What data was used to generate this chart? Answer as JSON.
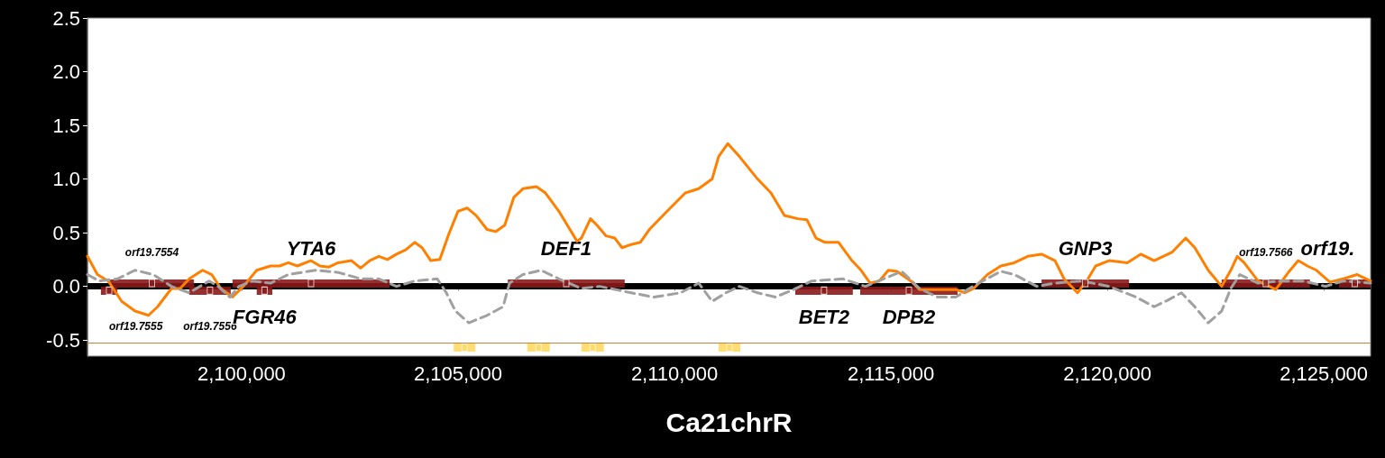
{
  "chart_data": {
    "type": "line",
    "xlabel": "Ca21chrR",
    "xlim": [
      2096440,
      2126080
    ],
    "xticks": [
      {
        "value": 2100000,
        "label": "2,100,000"
      },
      {
        "value": 2105000,
        "label": "2,105,000"
      },
      {
        "value": 2110000,
        "label": "2,110,000"
      },
      {
        "value": 2115000,
        "label": "2,115,000"
      },
      {
        "value": 2120000,
        "label": "2,120,000"
      },
      {
        "value": 2125000,
        "label": "2,125,000"
      }
    ],
    "ylim": [
      -0.65,
      2.5
    ],
    "yticks": [
      {
        "value": -0.5,
        "label": "-0.5"
      },
      {
        "value": 0,
        "label": "0.0"
      },
      {
        "value": 0.5,
        "label": "0.5"
      },
      {
        "value": 1,
        "label": "1.0"
      },
      {
        "value": 1.5,
        "label": "1.5"
      },
      {
        "value": 2,
        "label": "2.0"
      },
      {
        "value": 2.5,
        "label": "2.5"
      }
    ],
    "grid": false,
    "marker": "none",
    "series": [
      {
        "color": "#ff8000",
        "line_style": "solid",
        "x": [
          2096440,
          2096670,
          2096920,
          2097230,
          2097540,
          2097850,
          2098060,
          2098380,
          2098580,
          2098790,
          2099100,
          2099310,
          2099520,
          2099790,
          2100040,
          2100350,
          2100670,
          2100880,
          2101080,
          2101290,
          2101600,
          2101810,
          2102020,
          2102230,
          2102540,
          2102750,
          2102960,
          2103170,
          2103370,
          2103580,
          2103790,
          2104000,
          2104170,
          2104370,
          2104580,
          2104790,
          2105000,
          2105210,
          2105420,
          2105670,
          2105870,
          2106080,
          2106290,
          2106500,
          2106810,
          2107020,
          2107330,
          2107750,
          2107850,
          2108060,
          2108210,
          2108420,
          2108620,
          2108790,
          2109000,
          2109210,
          2109420,
          2109830,
          2110250,
          2110560,
          2110870,
          2111020,
          2111230,
          2111500,
          2111920,
          2112230,
          2112540,
          2112850,
          2113060,
          2113270,
          2113480,
          2113790,
          2114100,
          2114310,
          2114520,
          2114730,
          2114940,
          2115140,
          2115460,
          2115660,
          2116080,
          2116500,
          2116710,
          2116910,
          2117230,
          2117540,
          2117850,
          2118160,
          2118480,
          2118790,
          2119000,
          2119310,
          2119520,
          2119730,
          2120040,
          2120460,
          2120770,
          2121080,
          2121500,
          2121810,
          2122020,
          2122330,
          2122640,
          2122850,
          2123000,
          2123160,
          2123480,
          2123890,
          2124200,
          2124410,
          2124620,
          2124830,
          2125140,
          2125450,
          2125770,
          2126080
        ],
        "values": [
          0.28,
          0.11,
          0.05,
          -0.14,
          -0.23,
          -0.27,
          -0.19,
          -0.02,
          -0.02,
          0.07,
          0.15,
          0.11,
          -0.02,
          -0.1,
          0,
          0.15,
          0.19,
          0.19,
          0.22,
          0.19,
          0.24,
          0.19,
          0.18,
          0.22,
          0.24,
          0.17,
          0.24,
          0.28,
          0.25,
          0.3,
          0.34,
          0.41,
          0.36,
          0.24,
          0.25,
          0.49,
          0.7,
          0.73,
          0.66,
          0.53,
          0.51,
          0.57,
          0.83,
          0.91,
          0.93,
          0.87,
          0.7,
          0.42,
          0.45,
          0.63,
          0.57,
          0.47,
          0.45,
          0.36,
          0.39,
          0.41,
          0.53,
          0.7,
          0.87,
          0.91,
          1.0,
          1.21,
          1.33,
          1.21,
          1.0,
          0.87,
          0.66,
          0.63,
          0.62,
          0.45,
          0.41,
          0.41,
          0.24,
          0.15,
          0.03,
          0.05,
          0.15,
          0.14,
          0.05,
          -0.03,
          -0.03,
          -0.03,
          -0.06,
          -0.02,
          0.11,
          0.19,
          0.22,
          0.28,
          0.3,
          0.24,
          0.07,
          -0.06,
          0.05,
          0.19,
          0.24,
          0.22,
          0.3,
          0.24,
          0.32,
          0.45,
          0.36,
          0.15,
          0,
          0.15,
          0.28,
          0.22,
          0.05,
          -0.03,
          0.14,
          0.24,
          0.19,
          0.15,
          0.04,
          0.07,
          0.11,
          0.05
        ]
      },
      {
        "color": "#a0a0a0",
        "line_style": "dashed",
        "x": [
          2096440,
          2096710,
          2097130,
          2097540,
          2097960,
          2098380,
          2098790,
          2099040,
          2099250,
          2099460,
          2099730,
          2099940,
          2100250,
          2100670,
          2101080,
          2101710,
          2102230,
          2102750,
          2103170,
          2103580,
          2104000,
          2104520,
          2104730,
          2104940,
          2105250,
          2105670,
          2106040,
          2106190,
          2106500,
          2106920,
          2107330,
          2107850,
          2108270,
          2109000,
          2109520,
          2110140,
          2110560,
          2110870,
          2111190,
          2111500,
          2111920,
          2112330,
          2112750,
          2113170,
          2113890,
          2114410,
          2114830,
          2115250,
          2115660,
          2116080,
          2116500,
          2116810,
          2117120,
          2117540,
          2117850,
          2118370,
          2118790,
          2119410,
          2120040,
          2120660,
          2121080,
          2121390,
          2121710,
          2122020,
          2122330,
          2122640,
          2122850,
          2123060,
          2123480,
          2124000,
          2124520,
          2125040,
          2125450,
          2126080
        ],
        "values": [
          0.11,
          0.05,
          0.07,
          0.15,
          0.11,
          0,
          -0.06,
          0,
          0.05,
          0,
          -0.1,
          0,
          0.05,
          0.03,
          0.11,
          0.15,
          0.13,
          0.07,
          0.07,
          0,
          0.05,
          0.07,
          -0.06,
          -0.23,
          -0.34,
          -0.27,
          -0.19,
          0.03,
          0.11,
          0.15,
          0.07,
          -0.02,
          0,
          -0.06,
          -0.1,
          -0.06,
          0.03,
          -0.14,
          -0.06,
          0,
          -0.06,
          -0.1,
          -0.03,
          0.05,
          0.07,
          0,
          0.07,
          0.14,
          -0.02,
          -0.1,
          -0.1,
          -0.02,
          0.05,
          0.14,
          0.11,
          0,
          0.03,
          0.05,
          0,
          -0.1,
          -0.19,
          -0.13,
          -0.06,
          -0.19,
          -0.34,
          -0.23,
          -0.02,
          0.11,
          0.03,
          0.05,
          0.05,
          0,
          0.05,
          0.03
        ]
      },
      {
        "type": "scatter",
        "marker": "square",
        "color": "#8b1a1a",
        "x": [
          2097930,
          2096940,
          2101605,
          2099270,
          2107500,
          2100530,
          2119490,
          2113455,
          2123660,
          2115415,
          2125715
        ],
        "values": [
          0.03,
          -0.04,
          0.03,
          -0.04,
          0.03,
          -0.04,
          0.03,
          -0.04,
          0.03,
          -0.04,
          0.03
        ],
        "xerrors": [
          [
            2096960,
            2098900
          ],
          [
            2096750,
            2097130
          ],
          [
            2099790,
            2103420
          ],
          [
            2098790,
            2099750
          ],
          [
            2106150,
            2108850
          ],
          [
            2100350,
            2100710
          ],
          [
            2118480,
            2120500
          ],
          [
            2112790,
            2114120
          ],
          [
            2122640,
            2124680
          ],
          [
            2114290,
            2116540
          ],
          [
            2125350,
            2126080
          ]
        ]
      },
      {
        "type": "scatter",
        "marker": "square",
        "color": "#ffd966",
        "x": [
          2105150,
          2106860,
          2108110,
          2111270
        ],
        "values": [
          -0.57,
          -0.57,
          -0.57,
          -0.57
        ],
        "xerrors": [
          [
            2104900,
            2105400
          ],
          [
            2106600,
            2107120
          ],
          [
            2107850,
            2108370
          ],
          [
            2111020,
            2111520
          ]
        ]
      }
    ],
    "ref_lines": [
      {
        "axis": "y",
        "value": 0,
        "color": "#000000"
      },
      {
        "axis": "y",
        "value": -0.53,
        "color": "#c8843c"
      }
    ],
    "annotations": [
      {
        "text": "orf19.7554",
        "x": 2097930,
        "y": 0.03
      },
      {
        "text": "orf19.7555",
        "x": 2096940,
        "y": -0.04
      },
      {
        "text": "YTA6",
        "x": 2101605,
        "y": 0.03
      },
      {
        "text": "orf19.7556",
        "x": 2099270,
        "y": -0.04
      },
      {
        "text": "DEF1",
        "x": 2107500,
        "y": 0.03
      },
      {
        "text": "FGR46",
        "x": 2100530,
        "y": -0.04
      },
      {
        "text": "GNP3",
        "x": 2119490,
        "y": 0.03
      },
      {
        "text": "BET2",
        "x": 2113455,
        "y": -0.04
      },
      {
        "text": "orf19.7566",
        "x": 2123660,
        "y": 0.03
      },
      {
        "text": "DPB2",
        "x": 2115415,
        "y": -0.04
      },
      {
        "text": "orf19.",
        "x": 2125715,
        "y": 0.03
      }
    ]
  }
}
